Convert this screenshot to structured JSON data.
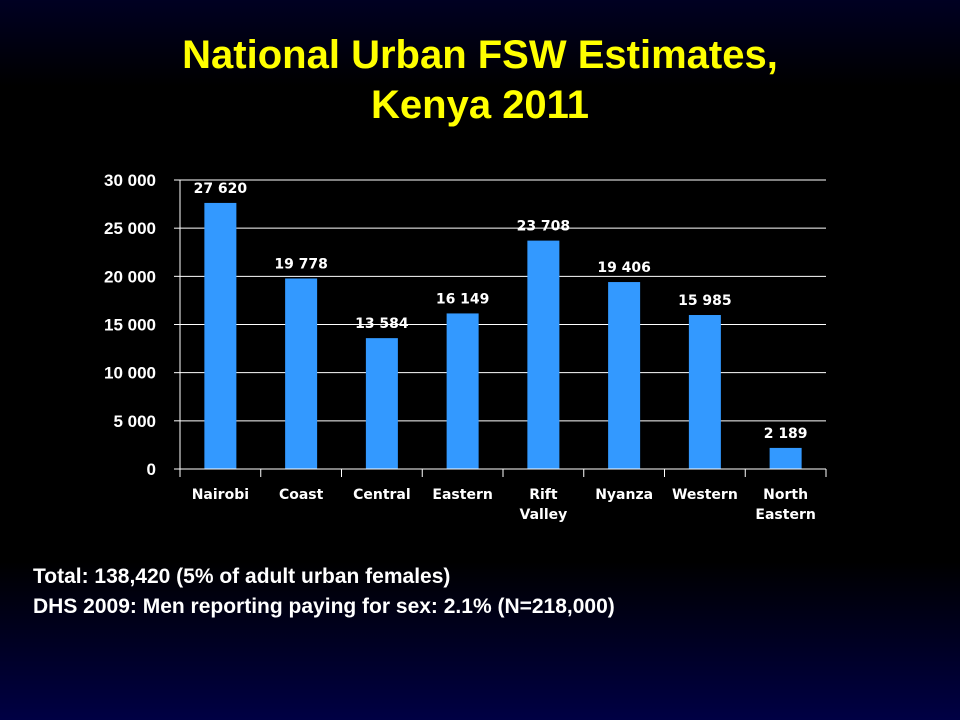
{
  "slide": {
    "title_line1": "National Urban FSW Estimates,",
    "title_line2": "Kenya 2011",
    "notes": [
      "Total:  138,420 (5% of adult urban females)",
      "DHS 2009:  Men reporting paying for sex:  2.1% (N=218,000)"
    ]
  },
  "colors": {
    "title": "#ffff00",
    "bar": "#3399ff",
    "axis": "#ffffff",
    "gridline": "#ffffff",
    "text": "#ffffff"
  },
  "chart_data": {
    "type": "bar",
    "categories": [
      [
        "Nairobi"
      ],
      [
        "Coast"
      ],
      [
        "Central"
      ],
      [
        "Eastern"
      ],
      [
        "Rift",
        "Valley"
      ],
      [
        "Nyanza"
      ],
      [
        "Western"
      ],
      [
        "North",
        "Eastern"
      ]
    ],
    "values": [
      27620,
      19778,
      13584,
      16149,
      23708,
      19406,
      15985,
      2189
    ],
    "data_labels": [
      "27 620",
      "19 778",
      "13 584",
      "16 149",
      "23 708",
      "19 406",
      "15 985",
      "2 189"
    ],
    "yticks": [
      0,
      5000,
      10000,
      15000,
      20000,
      25000,
      30000
    ],
    "ytick_labels": [
      "0",
      "5 000",
      "10 000",
      "15 000",
      "20 000",
      "25 000",
      "30 000"
    ],
    "ylim": [
      0,
      30000
    ],
    "grid": true,
    "legend": "none"
  }
}
